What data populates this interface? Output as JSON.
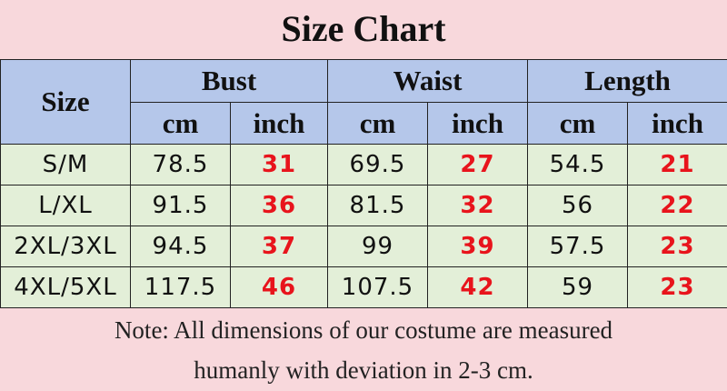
{
  "header": {
    "title": "Size Chart"
  },
  "table": {
    "size_header": "Size",
    "groups": [
      "Bust",
      "Waist",
      "Length"
    ],
    "units": [
      "cm",
      "inch",
      "cm",
      "inch",
      "cm",
      "inch"
    ],
    "rows": [
      [
        "S/M",
        "78.5",
        "31",
        "69.5",
        "27",
        "54.5",
        "21"
      ],
      [
        "L/XL",
        "91.5",
        "36",
        "81.5",
        "32",
        "56",
        "22"
      ],
      [
        "2XL/3XL",
        "94.5",
        "37",
        "99",
        "39",
        "57.5",
        "23"
      ],
      [
        "4XL/5XL",
        "117.5",
        "46",
        "107.5",
        "42",
        "59",
        "23"
      ]
    ]
  },
  "note": [
    "Note: All dimensions of our costume are measured",
    "humanly with deviation in 2-3 cm."
  ]
}
